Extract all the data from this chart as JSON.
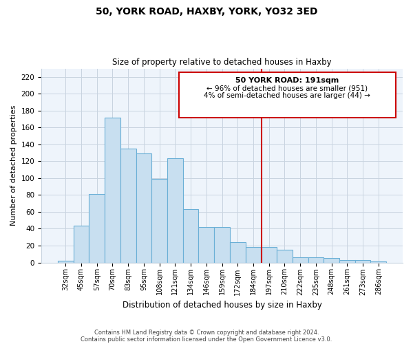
{
  "title": "50, YORK ROAD, HAXBY, YORK, YO32 3ED",
  "subtitle": "Size of property relative to detached houses in Haxby",
  "xlabel": "Distribution of detached houses by size in Haxby",
  "ylabel": "Number of detached properties",
  "bar_labels": [
    "32sqm",
    "45sqm",
    "57sqm",
    "70sqm",
    "83sqm",
    "95sqm",
    "108sqm",
    "121sqm",
    "134sqm",
    "146sqm",
    "159sqm",
    "172sqm",
    "184sqm",
    "197sqm",
    "210sqm",
    "222sqm",
    "235sqm",
    "248sqm",
    "261sqm",
    "273sqm",
    "286sqm"
  ],
  "bar_values": [
    2,
    44,
    81,
    172,
    135,
    129,
    99,
    124,
    63,
    42,
    42,
    24,
    18,
    18,
    15,
    6,
    6,
    5,
    3,
    3,
    1
  ],
  "bar_color": "#c8dff0",
  "bar_edge_color": "#6aafd6",
  "ylim": [
    0,
    230
  ],
  "yticks": [
    0,
    20,
    40,
    60,
    80,
    100,
    120,
    140,
    160,
    180,
    200,
    220
  ],
  "property_line_color": "#cc0000",
  "annotation_title": "50 YORK ROAD: 191sqm",
  "annotation_line1": "← 96% of detached houses are smaller (951)",
  "annotation_line2": "4% of semi-detached houses are larger (44) →",
  "footer_line1": "Contains HM Land Registry data © Crown copyright and database right 2024.",
  "footer_line2": "Contains public sector information licensed under the Open Government Licence v3.0.",
  "background_color": "#ffffff"
}
